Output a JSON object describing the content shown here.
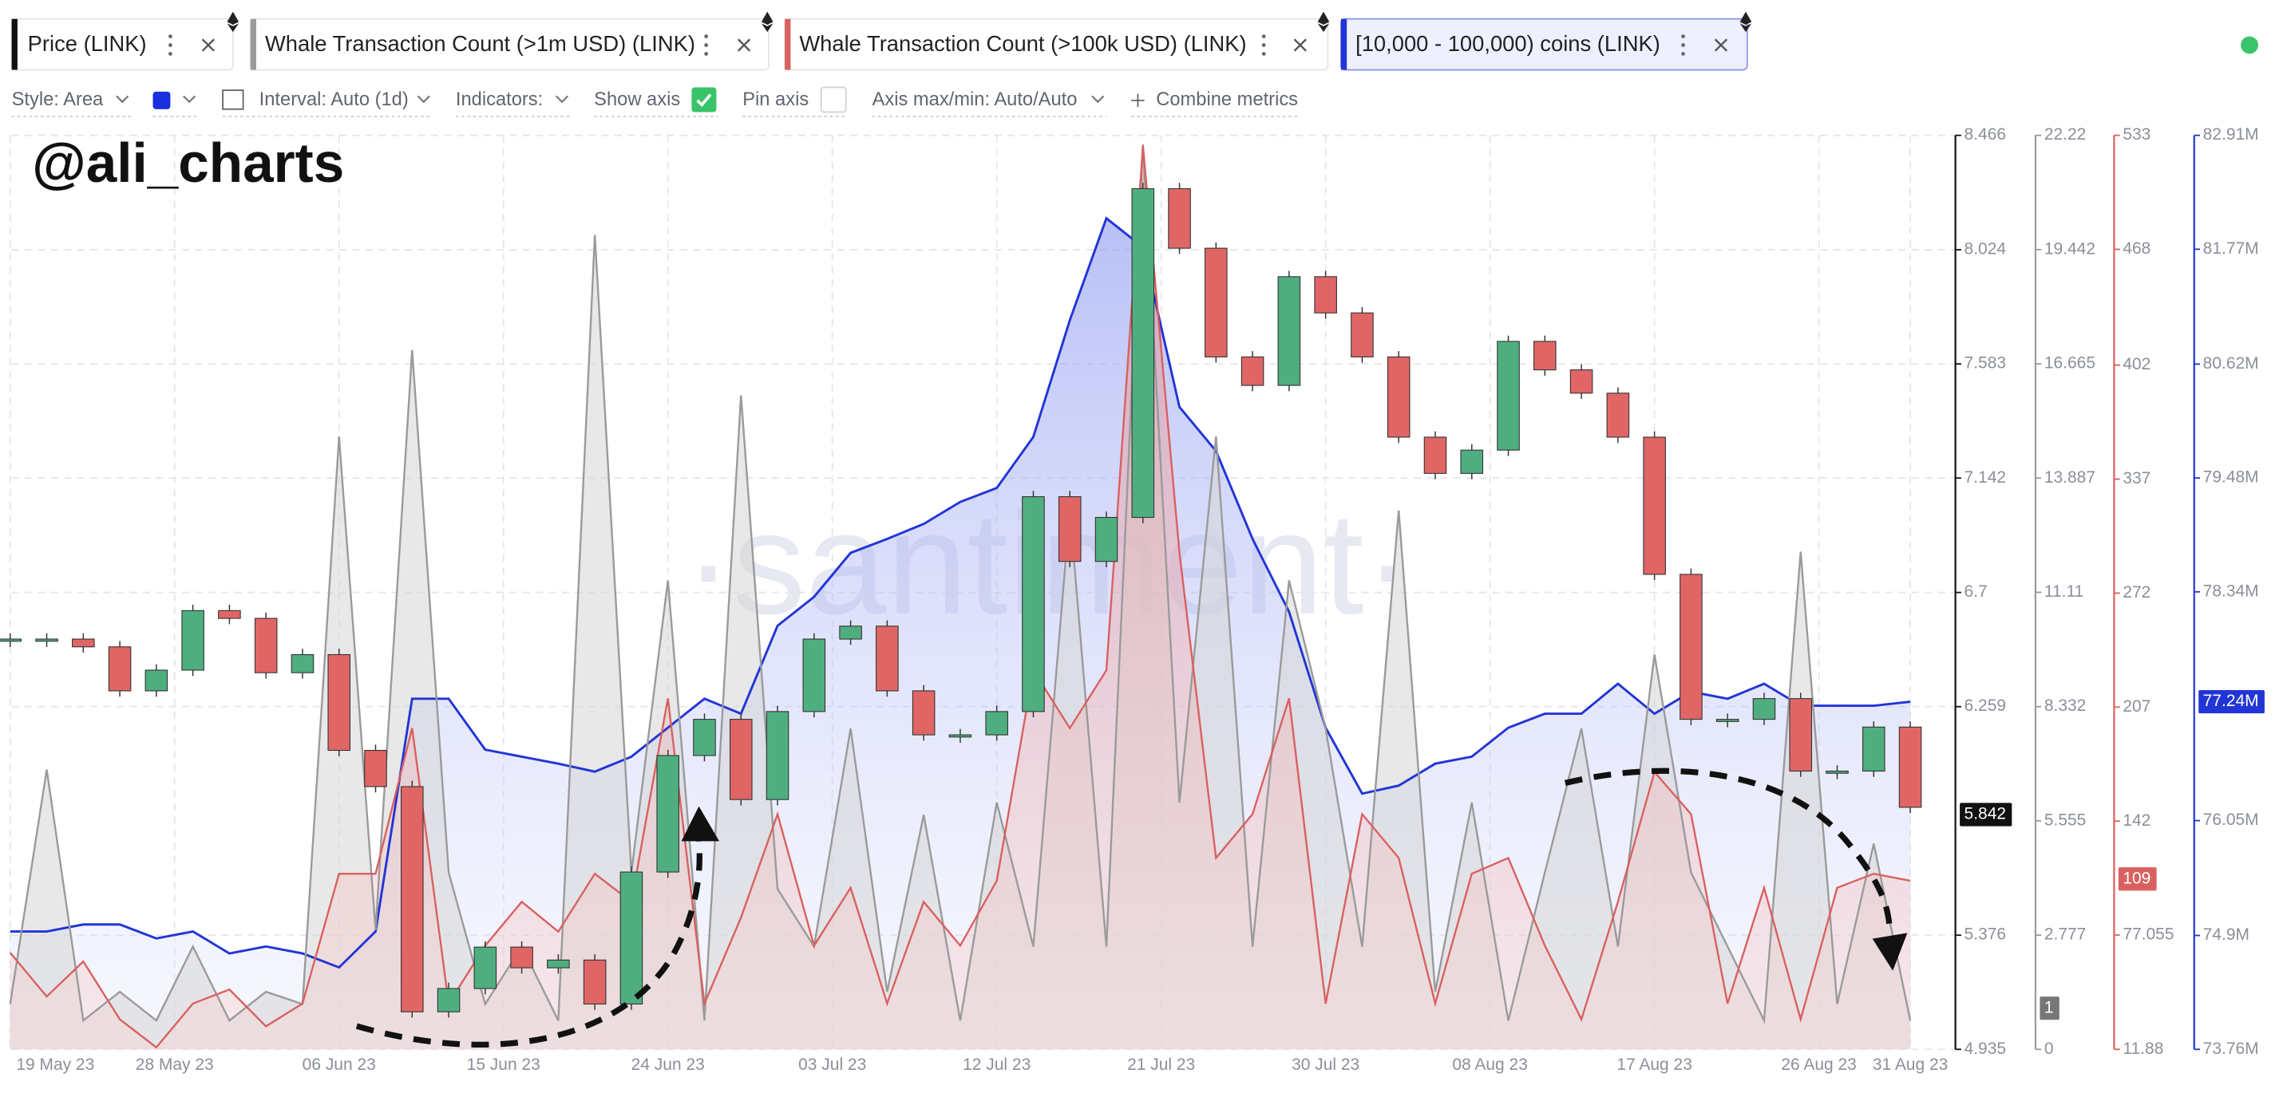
{
  "tabs_note_free": true,
  "toolbar": {
    "style": "Style: Area",
    "interval": "Interval: Auto (1d)",
    "indicators": "Indicators:",
    "show_axis": "Show axis",
    "pin_axis": "Pin axis",
    "axis_maxmin": "Axis max/min: Auto/Auto",
    "combine": "Combine metrics"
  },
  "chart_data": {
    "type": "candlestick",
    "annotation": "@ali_charts",
    "watermark": "·santiment·",
    "x": [
      0,
      2,
      4,
      6,
      8,
      10,
      12,
      14,
      16,
      18,
      20,
      22,
      24,
      26,
      28,
      30,
      32,
      34,
      36,
      38,
      40,
      42,
      44,
      46,
      48,
      50,
      52,
      54,
      56,
      58,
      60,
      62,
      64,
      66,
      68,
      70,
      72,
      74,
      76,
      78,
      80,
      82,
      84,
      86,
      88,
      90,
      92,
      94,
      96,
      98,
      100,
      102,
      104
    ],
    "xlim": [
      0,
      104
    ],
    "xticks": [
      {
        "value": 0,
        "label": "19 May 23"
      },
      {
        "value": 9,
        "label": "28 May 23"
      },
      {
        "value": 18,
        "label": "06 Jun 23"
      },
      {
        "value": 27,
        "label": "15 Jun 23"
      },
      {
        "value": 36,
        "label": "24 Jun 23"
      },
      {
        "value": 45,
        "label": "03 Jul 23"
      },
      {
        "value": 54,
        "label": "12 Jul 23"
      },
      {
        "value": 63,
        "label": "21 Jul 23"
      },
      {
        "value": 72,
        "label": "30 Jul 23"
      },
      {
        "value": 81,
        "label": "08 Aug 23"
      },
      {
        "value": 90,
        "label": "17 Aug 23"
      },
      {
        "value": 99,
        "label": "26 Aug 23"
      },
      {
        "value": 104,
        "label": "31 Aug 23"
      }
    ],
    "grid": true,
    "series": [
      {
        "name": "Price (LINK)",
        "color": "#111111",
        "up_color": "#4fae80",
        "down_color": "#e06666",
        "values": [
          6.52,
          6.52,
          6.49,
          6.32,
          6.4,
          6.63,
          6.6,
          6.39,
          6.46,
          6.09,
          5.95,
          5.08,
          5.17,
          5.33,
          5.25,
          5.28,
          5.11,
          5.62,
          6.07,
          6.21,
          5.9,
          6.24,
          6.52,
          6.57,
          6.32,
          6.15,
          6.15,
          6.24,
          7.07,
          6.82,
          6.99,
          8.26,
          8.03,
          7.61,
          7.5,
          7.92,
          7.78,
          7.61,
          7.3,
          7.16,
          7.25,
          7.67,
          7.56,
          7.47,
          7.3,
          6.77,
          6.21,
          6.21,
          6.29,
          6.01,
          6.01,
          6.18,
          5.87
        ],
        "current": 5.842,
        "ylim": [
          4.935,
          8.466
        ],
        "yticks": [
          8.466,
          8.024,
          7.583,
          7.142,
          6.7,
          6.259,
          5.376,
          4.935
        ]
      },
      {
        "name": "Whale Transaction Count (>1m USD) (LINK)",
        "color": "#9a9a9a",
        "values": [
          1.1,
          6.8,
          0.7,
          1.4,
          0.7,
          2.5,
          0.7,
          1.4,
          1.1,
          14.9,
          2.9,
          17.0,
          4.3,
          1.1,
          2.5,
          0.7,
          19.8,
          4.3,
          11.4,
          0.7,
          15.9,
          3.9,
          2.5,
          7.8,
          1.4,
          5.7,
          0.7,
          6.0,
          2.5,
          13.1,
          2.5,
          22.0,
          6.0,
          14.9,
          2.5,
          11.4,
          7.8,
          2.5,
          13.1,
          1.4,
          6.0,
          0.7,
          4.3,
          7.8,
          2.5,
          9.6,
          4.3,
          2.5,
          0.7,
          12.1,
          1.1,
          5.0,
          0.7
        ],
        "current": 1,
        "ylim": [
          0,
          22.22
        ],
        "yticks": [
          22.22,
          19.442,
          16.665,
          13.887,
          11.11,
          8.332,
          5.555,
          2.777,
          0
        ]
      },
      {
        "name": "Whale Transaction Count (>100k USD) (LINK)",
        "color": "#d9605f",
        "values": [
          67,
          42,
          62,
          29,
          13,
          38,
          46,
          25,
          38,
          112,
          112,
          195,
          38,
          71,
          96,
          79,
          112,
          96,
          212,
          38,
          87,
          146,
          71,
          104,
          38,
          96,
          71,
          108,
          228,
          195,
          228,
          527,
          295,
          121,
          146,
          212,
          38,
          146,
          121,
          38,
          112,
          121,
          71,
          29,
          96,
          170,
          146,
          38,
          104,
          29,
          104,
          112,
          108
        ],
        "current": 109,
        "ylim": [
          11.88,
          533
        ],
        "yticks": [
          533,
          468,
          402,
          337,
          272,
          207,
          142,
          77.055,
          11.88
        ]
      },
      {
        "name": "[10,000 - 100,000) coins (LINK)",
        "color": "#2235d6",
        "values": [
          74940000,
          74940000,
          75010000,
          75010000,
          74870000,
          74940000,
          74720000,
          74790000,
          74720000,
          74580000,
          74940000,
          77270000,
          77270000,
          76760000,
          76690000,
          76620000,
          76540000,
          76690000,
          76980000,
          77270000,
          77120000,
          78000000,
          78290000,
          78730000,
          78870000,
          79020000,
          79240000,
          79380000,
          79890000,
          81060000,
          82080000,
          81790000,
          80190000,
          79750000,
          78870000,
          78140000,
          76980000,
          76320000,
          76400000,
          76620000,
          76690000,
          76980000,
          77120000,
          77120000,
          77420000,
          77120000,
          77340000,
          77270000,
          77420000,
          77200000,
          77200000,
          77200000,
          77240000
        ],
        "current": 77240000,
        "current_label": "77.24M",
        "ylim": [
          73760000,
          82910000
        ],
        "yticks": [
          {
            "value": 82910000,
            "label": "82.91M"
          },
          {
            "value": 81770000,
            "label": "81.77M"
          },
          {
            "value": 80620000,
            "label": "80.62M"
          },
          {
            "value": 79480000,
            "label": "79.48M"
          },
          {
            "value": 78340000,
            "label": "78.34M"
          },
          {
            "value": 76050000,
            "label": "76.05M"
          },
          {
            "value": 74900000,
            "label": "74.9M"
          },
          {
            "value": 73760000,
            "label": "73.76M"
          }
        ]
      }
    ]
  }
}
